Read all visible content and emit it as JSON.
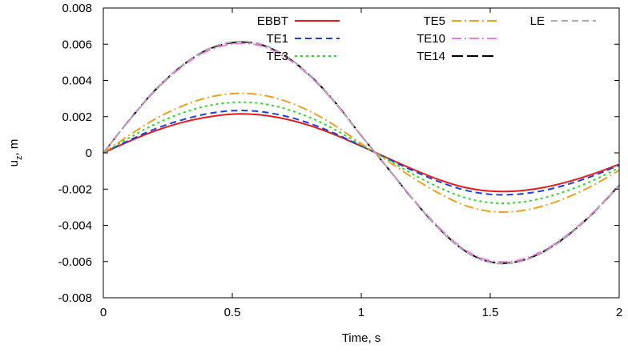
{
  "chart_data": {
    "type": "line",
    "title": "",
    "xlabel": "Time, s",
    "ylabel": "u_z, m",
    "xlim": [
      0,
      2
    ],
    "ylim": [
      -0.008,
      0.008
    ],
    "xticks": [
      0,
      0.5,
      1,
      1.5,
      2
    ],
    "xtick_labels": [
      "0",
      "0.5",
      "1",
      "1.5",
      "2"
    ],
    "yticks": [
      -0.008,
      -0.006,
      -0.004,
      -0.002,
      0,
      0.002,
      0.004,
      0.006,
      0.008
    ],
    "ytick_labels": [
      "-0.008",
      "-0.006",
      "-0.004",
      "-0.002",
      "0",
      "0.002",
      "0.004",
      "0.006",
      "0.008"
    ],
    "grid": false,
    "legend_position": "top-right",
    "x": [
      0,
      0.1,
      0.2,
      0.3,
      0.4,
      0.5,
      0.6,
      0.7,
      0.8,
      0.9,
      1.0,
      1.1,
      1.2,
      1.3,
      1.4,
      1.5,
      1.6,
      1.7,
      1.8,
      1.9,
      2.0
    ],
    "series": [
      {
        "name": "EBBT",
        "color": "#e41a1c",
        "dash": "solid",
        "values": [
          0,
          0.00064,
          0.00121,
          0.00166,
          0.00197,
          0.00214,
          0.00211,
          0.00189,
          0.00151,
          0.00099,
          0.00037,
          -0.00027,
          -0.0009,
          -0.00147,
          -0.0019,
          -0.00211,
          -0.00211,
          -0.00193,
          -0.0016,
          -0.00116,
          -0.00063
        ]
      },
      {
        "name": "TE1",
        "color": "#1f3fd6",
        "dash": "dashed",
        "values": [
          0,
          0.00069,
          0.00132,
          0.0018,
          0.00215,
          0.00233,
          0.00229,
          0.00205,
          0.00163,
          0.00106,
          0.00038,
          -0.0003,
          -0.00098,
          -0.00158,
          -0.00205,
          -0.00229,
          -0.00229,
          -0.0021,
          -0.00174,
          -0.00126,
          -0.00068
        ]
      },
      {
        "name": "TE3",
        "color": "#22dd22",
        "dash": "dotted",
        "values": [
          0,
          0.00083,
          0.00158,
          0.00217,
          0.00259,
          0.00278,
          0.00275,
          0.00246,
          0.00196,
          0.00127,
          0.00044,
          -0.00036,
          -0.00117,
          -0.0019,
          -0.00246,
          -0.00275,
          -0.00275,
          -0.00251,
          -0.00208,
          -0.00151,
          -0.00082
        ]
      },
      {
        "name": "TE5",
        "color": "#f0a01e",
        "dash": "dashdot",
        "values": [
          0,
          0.00097,
          0.00186,
          0.00255,
          0.00304,
          0.00327,
          0.00323,
          0.00289,
          0.0023,
          0.00149,
          0.00051,
          -0.00042,
          -0.00137,
          -0.00222,
          -0.00289,
          -0.00323,
          -0.00323,
          -0.00295,
          -0.00245,
          -0.00178,
          -0.00096
        ]
      },
      {
        "name": "TE10",
        "color": "#e87ee0",
        "dash": "dashdot",
        "values": [
          0,
          0.00178,
          0.00341,
          0.0047,
          0.0056,
          0.00601,
          0.00595,
          0.00533,
          0.00424,
          0.00273,
          0.00094,
          -0.00078,
          -0.00253,
          -0.0041,
          -0.00533,
          -0.00595,
          -0.00595,
          -0.00544,
          -0.00451,
          -0.00327,
          -0.00177
        ]
      },
      {
        "name": "TE14",
        "color": "#000000",
        "dash": "longdash",
        "values": [
          0,
          0.0018,
          0.00345,
          0.00475,
          0.00567,
          0.00608,
          0.00602,
          0.00539,
          0.00429,
          0.00277,
          0.00095,
          -0.00079,
          -0.00256,
          -0.00415,
          -0.00539,
          -0.00602,
          -0.00602,
          -0.0055,
          -0.00456,
          -0.00331,
          -0.00179
        ]
      },
      {
        "name": "LE",
        "color": "#aaaaaa",
        "dash": "dashed",
        "values": [
          0,
          0.00181,
          0.00347,
          0.00478,
          0.0057,
          0.00612,
          0.00605,
          0.00542,
          0.00431,
          0.00278,
          0.00096,
          -0.00079,
          -0.00257,
          -0.00417,
          -0.00542,
          -0.00605,
          -0.00605,
          -0.00553,
          -0.00459,
          -0.00333,
          -0.0018
        ]
      }
    ]
  }
}
